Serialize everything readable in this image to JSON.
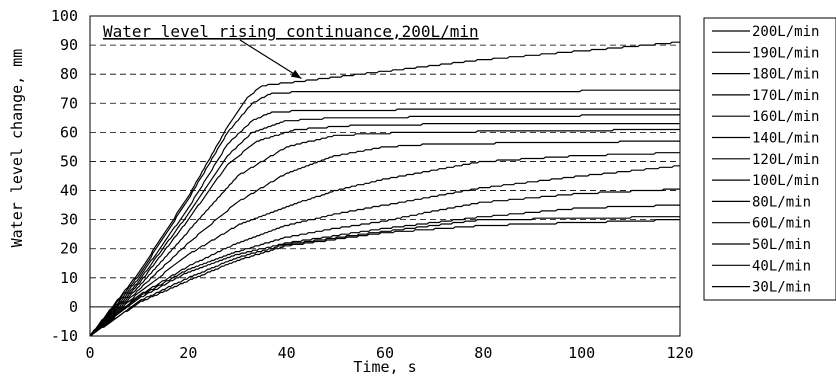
{
  "chart_data": {
    "type": "line",
    "title": "",
    "xlabel": "Time,  s",
    "ylabel": "Water level change,  mm",
    "xlim": [
      0,
      120
    ],
    "ylim": [
      -10,
      100
    ],
    "xticks": [
      0,
      20,
      40,
      60,
      80,
      100,
      120
    ],
    "yticks": [
      -10,
      0,
      10,
      20,
      30,
      40,
      50,
      60,
      70,
      80,
      90,
      100
    ],
    "grid": "horizontal dashed",
    "legend_position": "right",
    "annotation": {
      "text": "Water level rising continuance,200L/min",
      "points_to": {
        "x": 43,
        "y": 78.5
      }
    },
    "series": [
      {
        "name": "200L/min",
        "points": [
          [
            0,
            -10
          ],
          [
            10,
            12
          ],
          [
            20,
            38
          ],
          [
            28,
            62
          ],
          [
            32,
            72
          ],
          [
            35,
            76
          ],
          [
            40,
            77
          ],
          [
            60,
            81
          ],
          [
            80,
            85
          ],
          [
            100,
            88
          ],
          [
            120,
            91
          ]
        ]
      },
      {
        "name": "190L/min",
        "points": [
          [
            0,
            -10
          ],
          [
            10,
            11
          ],
          [
            20,
            37
          ],
          [
            28,
            60
          ],
          [
            33,
            70
          ],
          [
            37,
            73.5
          ],
          [
            45,
            74
          ],
          [
            80,
            74
          ],
          [
            120,
            74.5
          ]
        ]
      },
      {
        "name": "180L/min",
        "points": [
          [
            0,
            -10
          ],
          [
            10,
            10
          ],
          [
            20,
            34
          ],
          [
            28,
            56
          ],
          [
            33,
            64
          ],
          [
            37,
            67
          ],
          [
            45,
            67.5
          ],
          [
            80,
            68
          ],
          [
            120,
            68
          ]
        ]
      },
      {
        "name": "170L/min",
        "points": [
          [
            0,
            -10
          ],
          [
            10,
            9
          ],
          [
            20,
            32
          ],
          [
            28,
            52
          ],
          [
            33,
            60
          ],
          [
            40,
            64
          ],
          [
            50,
            65
          ],
          [
            80,
            65.5
          ],
          [
            120,
            66
          ]
        ]
      },
      {
        "name": "160L/min",
        "points": [
          [
            0,
            -10
          ],
          [
            10,
            8
          ],
          [
            20,
            30
          ],
          [
            28,
            49
          ],
          [
            34,
            57
          ],
          [
            42,
            61
          ],
          [
            55,
            62.5
          ],
          [
            80,
            63
          ],
          [
            120,
            63
          ]
        ]
      },
      {
        "name": "140L/min",
        "points": [
          [
            0,
            -10
          ],
          [
            10,
            7
          ],
          [
            20,
            26
          ],
          [
            30,
            45
          ],
          [
            40,
            55
          ],
          [
            50,
            59
          ],
          [
            65,
            60
          ],
          [
            120,
            61
          ]
        ]
      },
      {
        "name": "120L/min",
        "points": [
          [
            0,
            -10
          ],
          [
            10,
            6
          ],
          [
            20,
            22
          ],
          [
            30,
            36
          ],
          [
            40,
            46
          ],
          [
            50,
            52
          ],
          [
            60,
            55
          ],
          [
            70,
            56
          ],
          [
            120,
            57
          ]
        ]
      },
      {
        "name": "100L/min",
        "points": [
          [
            0,
            -10
          ],
          [
            10,
            5
          ],
          [
            20,
            18
          ],
          [
            30,
            28
          ],
          [
            40,
            34.5
          ],
          [
            50,
            40
          ],
          [
            60,
            44
          ],
          [
            80,
            50
          ],
          [
            100,
            52
          ],
          [
            120,
            53
          ]
        ]
      },
      {
        "name": "80L/min",
        "points": [
          [
            0,
            -10
          ],
          [
            10,
            4
          ],
          [
            20,
            14
          ],
          [
            30,
            22
          ],
          [
            40,
            28
          ],
          [
            50,
            32
          ],
          [
            60,
            35
          ],
          [
            80,
            41
          ],
          [
            100,
            45
          ],
          [
            120,
            48.5
          ]
        ]
      },
      {
        "name": "60L/min",
        "points": [
          [
            0,
            -10
          ],
          [
            10,
            3.5
          ],
          [
            20,
            13
          ],
          [
            30,
            19
          ],
          [
            40,
            24
          ],
          [
            50,
            27
          ],
          [
            60,
            29.5
          ],
          [
            70,
            33
          ],
          [
            80,
            36
          ],
          [
            100,
            39
          ],
          [
            120,
            40.5
          ]
        ]
      },
      {
        "name": "50L/min",
        "points": [
          [
            0,
            -10
          ],
          [
            10,
            3
          ],
          [
            20,
            12
          ],
          [
            30,
            18
          ],
          [
            40,
            22
          ],
          [
            60,
            27
          ],
          [
            80,
            31
          ],
          [
            100,
            34
          ],
          [
            120,
            35
          ]
        ]
      },
      {
        "name": "40L/min",
        "points": [
          [
            0,
            -10
          ],
          [
            10,
            2
          ],
          [
            20,
            10
          ],
          [
            30,
            17
          ],
          [
            40,
            21.5
          ],
          [
            60,
            26
          ],
          [
            80,
            30
          ],
          [
            120,
            31
          ]
        ]
      },
      {
        "name": "30L/min",
        "points": [
          [
            0,
            -10
          ],
          [
            10,
            1.5
          ],
          [
            20,
            9
          ],
          [
            30,
            16
          ],
          [
            40,
            21
          ],
          [
            60,
            25.5
          ],
          [
            80,
            28
          ],
          [
            100,
            29
          ],
          [
            120,
            30
          ]
        ]
      }
    ]
  }
}
